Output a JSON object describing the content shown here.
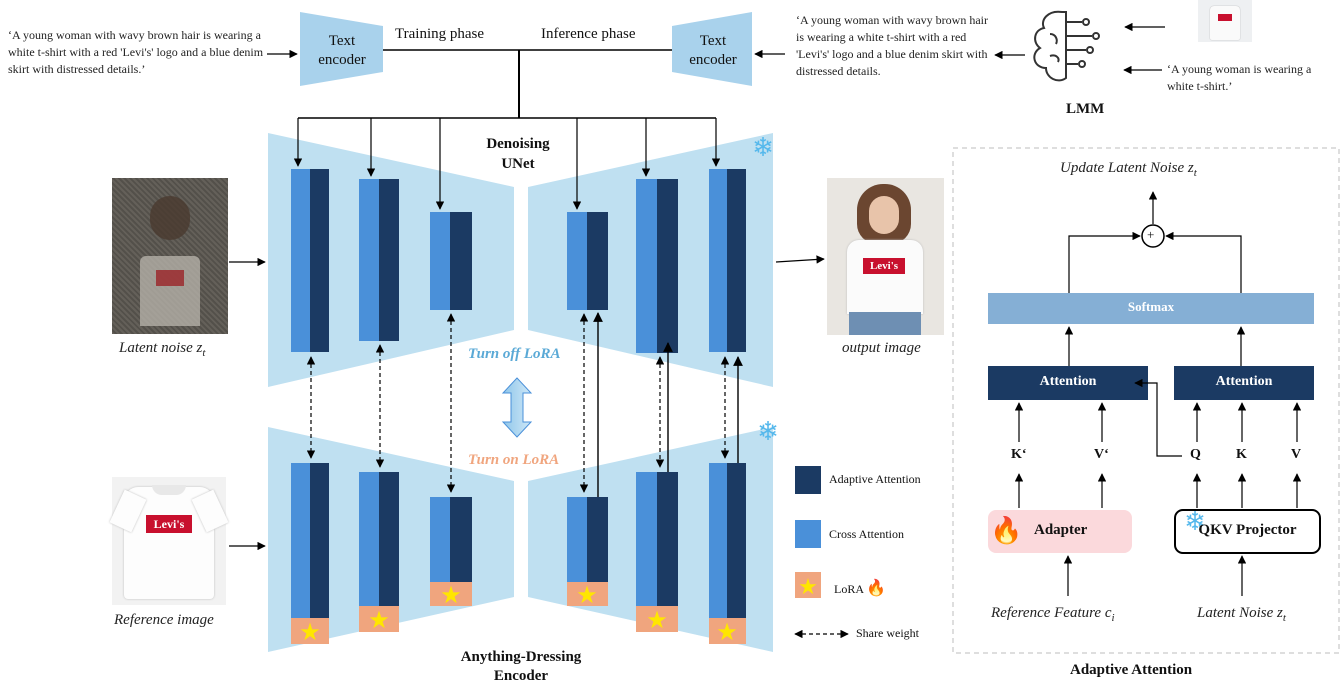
{
  "prompts": {
    "training": "‘A young woman with wavy brown hair is wearing a white t-shirt with a red 'Levi's' logo and a blue denim skirt with distressed details.’",
    "inference": "‘A young woman with wavy brown hair is wearing a white t-shirt with a red 'Levi's' logo and a blue denim skirt with distressed details.",
    "lmm_input": "‘A young woman is wearing a white t-shirt.’"
  },
  "encoders": {
    "left": "Text encoder",
    "right": "Text encoder"
  },
  "phases": {
    "training": "Training phase",
    "inference": "Inference phase"
  },
  "lmm_label": "LMM",
  "unet": {
    "title": "Denoising UNet",
    "title_line1": "Denoising",
    "title_line2": "UNet"
  },
  "encoder_block": {
    "line1": "Anything-Dressing",
    "line2": "Encoder"
  },
  "lora": {
    "off": "Turn off LoRA",
    "on": "Turn on LoRA"
  },
  "images": {
    "latent_label": "Latent noise z",
    "latent_sub": "t",
    "reference_label": "Reference image",
    "output_label": "output image",
    "logo_text": "Levi's"
  },
  "legend": {
    "adaptive": "Adaptive Attention",
    "cross": "Cross Attention",
    "lora": "LoRA",
    "share": "Share weight"
  },
  "adaptive_panel": {
    "title": "Adaptive  Attention",
    "update": "Update Latent Noise z",
    "update_sub": "t",
    "softmax": "Softmax",
    "attention_left": "Attention",
    "attention_right": "Attention",
    "k_prime": "K‘",
    "v_prime": "V‘",
    "q": "Q",
    "k": "K",
    "v": "V",
    "adapter": "Adapter",
    "qkv": "QKV Projector",
    "ref_feature": "Reference Feature c",
    "ref_feature_sub": "i",
    "latent_noise": "Latent Noise z",
    "latent_noise_sub": "t",
    "plus": "+"
  },
  "colors": {
    "dark_navy": "#1b3a63",
    "cross_blue": "#4a90d9",
    "trapezoid_bg": "#bfe0f1",
    "lora_orange": "#f0a57e",
    "softmax_blue": "#85afd5",
    "adapter_pink": "#fbd9dc",
    "lora_off_text": "#5aa9d6",
    "lora_on_text": "#f0a57e"
  }
}
